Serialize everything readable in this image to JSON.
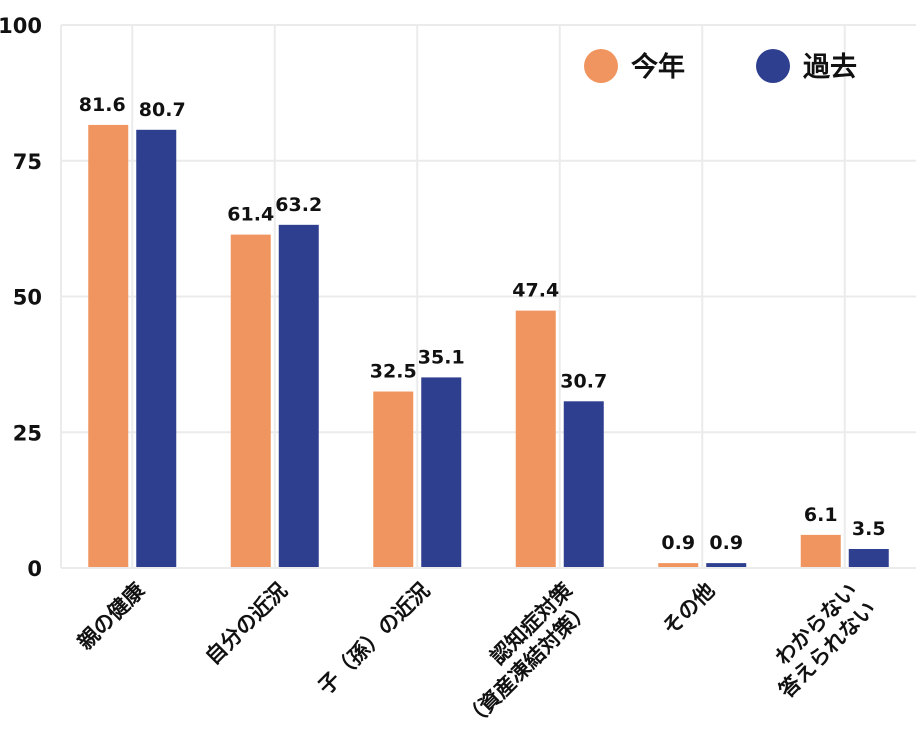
{
  "chart_data": {
    "type": "bar",
    "title": "",
    "xlabel": "",
    "ylabel": "",
    "ylim": [
      0,
      100
    ],
    "yticks": [
      0,
      25,
      50,
      75,
      100
    ],
    "grid": true,
    "legend_placement": "top-right",
    "categories": [
      [
        "親の健康"
      ],
      [
        "自分の近況"
      ],
      [
        "子（孫）の近況"
      ],
      [
        "認知症対策",
        "（資産凍結対策）"
      ],
      [
        "その他"
      ],
      [
        "わからない",
        "答えられない"
      ]
    ],
    "series": [
      {
        "name": "今年",
        "color": "#F0955F",
        "values": [
          81.6,
          61.4,
          32.5,
          47.4,
          0.9,
          6.1
        ]
      },
      {
        "name": "過去",
        "color": "#2E3F8F",
        "values": [
          80.7,
          63.2,
          35.1,
          30.7,
          0.9,
          3.5
        ]
      }
    ]
  }
}
